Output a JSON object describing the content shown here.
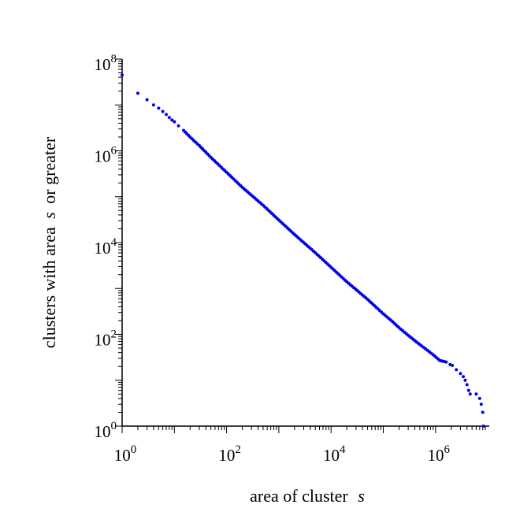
{
  "chart_data": {
    "type": "scatter",
    "xscale": "log",
    "yscale": "log",
    "xlim": [
      1,
      9000000
    ],
    "ylim": [
      1,
      100000000
    ],
    "grid": false,
    "xlabel_text": "area of cluster",
    "xlabel_var": "s",
    "ylabel_text": "clusters with area",
    "ylabel_var": "s",
    "ylabel_suffix": "or greater",
    "colors": {
      "points": "#0000ee",
      "axes": "#000000"
    },
    "xticks": [
      {
        "base": "10",
        "exp": "0"
      },
      {
        "base": "10",
        "exp": "2"
      },
      {
        "base": "10",
        "exp": "4"
      },
      {
        "base": "10",
        "exp": "6"
      }
    ],
    "yticks": [
      {
        "base": "10",
        "exp": "0"
      },
      {
        "base": "10",
        "exp": "2"
      },
      {
        "base": "10",
        "exp": "4"
      },
      {
        "base": "10",
        "exp": "6"
      },
      {
        "base": "10",
        "exp": "8"
      }
    ],
    "series": [
      {
        "x": [
          1,
          2,
          3,
          4,
          5,
          6,
          7,
          8,
          9,
          10,
          12,
          15,
          20,
          30,
          50,
          100,
          200,
          500,
          1000,
          2000,
          5000,
          10000,
          20000,
          50000,
          100000,
          150000,
          200000,
          300000,
          500000,
          700000,
          900000,
          1200000,
          1600000,
          1900000,
          2100000,
          2500000,
          3000000,
          3400000,
          3700000,
          4000000,
          4300000,
          4600000,
          6000000,
          7000000,
          7500000,
          8000000,
          8300000
        ],
        "y": [
          45000000,
          18000000,
          13000000,
          10000000,
          8500000,
          7200000,
          6200000,
          5300000,
          4700000,
          4300000,
          3500000,
          2800000,
          2000000,
          1300000,
          720000,
          340000,
          160000,
          65000,
          31000,
          15000,
          6000,
          2900,
          1400,
          580,
          280,
          190,
          140,
          95,
          60,
          45,
          36,
          27,
          25,
          22,
          21,
          17,
          14,
          12,
          10,
          8,
          6,
          5,
          5,
          4,
          3,
          2,
          1
        ]
      }
    ]
  }
}
